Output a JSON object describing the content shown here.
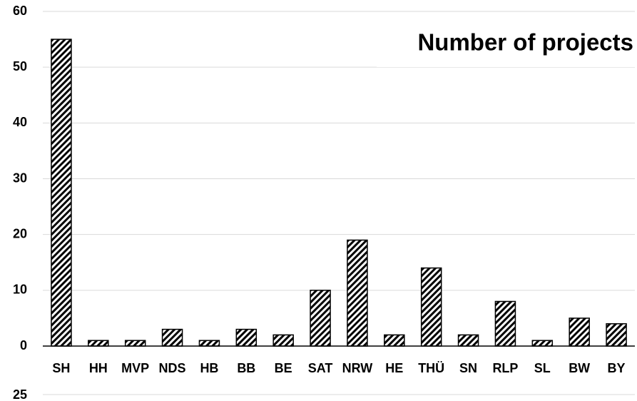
{
  "chart_data": [
    {
      "type": "bar",
      "title": "Number of projects",
      "categories": [
        "SH",
        "HH",
        "MVP",
        "NDS",
        "HB",
        "BB",
        "BE",
        "SAT",
        "NRW",
        "HE",
        "THÜ",
        "SN",
        "RLP",
        "SL",
        "BW",
        "BY"
      ],
      "values": [
        55,
        1,
        1,
        3,
        1,
        3,
        2,
        10,
        19,
        2,
        14,
        2,
        8,
        1,
        5,
        4
      ],
      "color": "#000000",
      "ylim": [
        0,
        60
      ],
      "yticks": [
        0,
        10,
        20,
        30,
        40,
        50,
        60
      ],
      "grid": true
    },
    {
      "type": "bar",
      "yticks": [
        25
      ],
      "grid": true
    }
  ]
}
